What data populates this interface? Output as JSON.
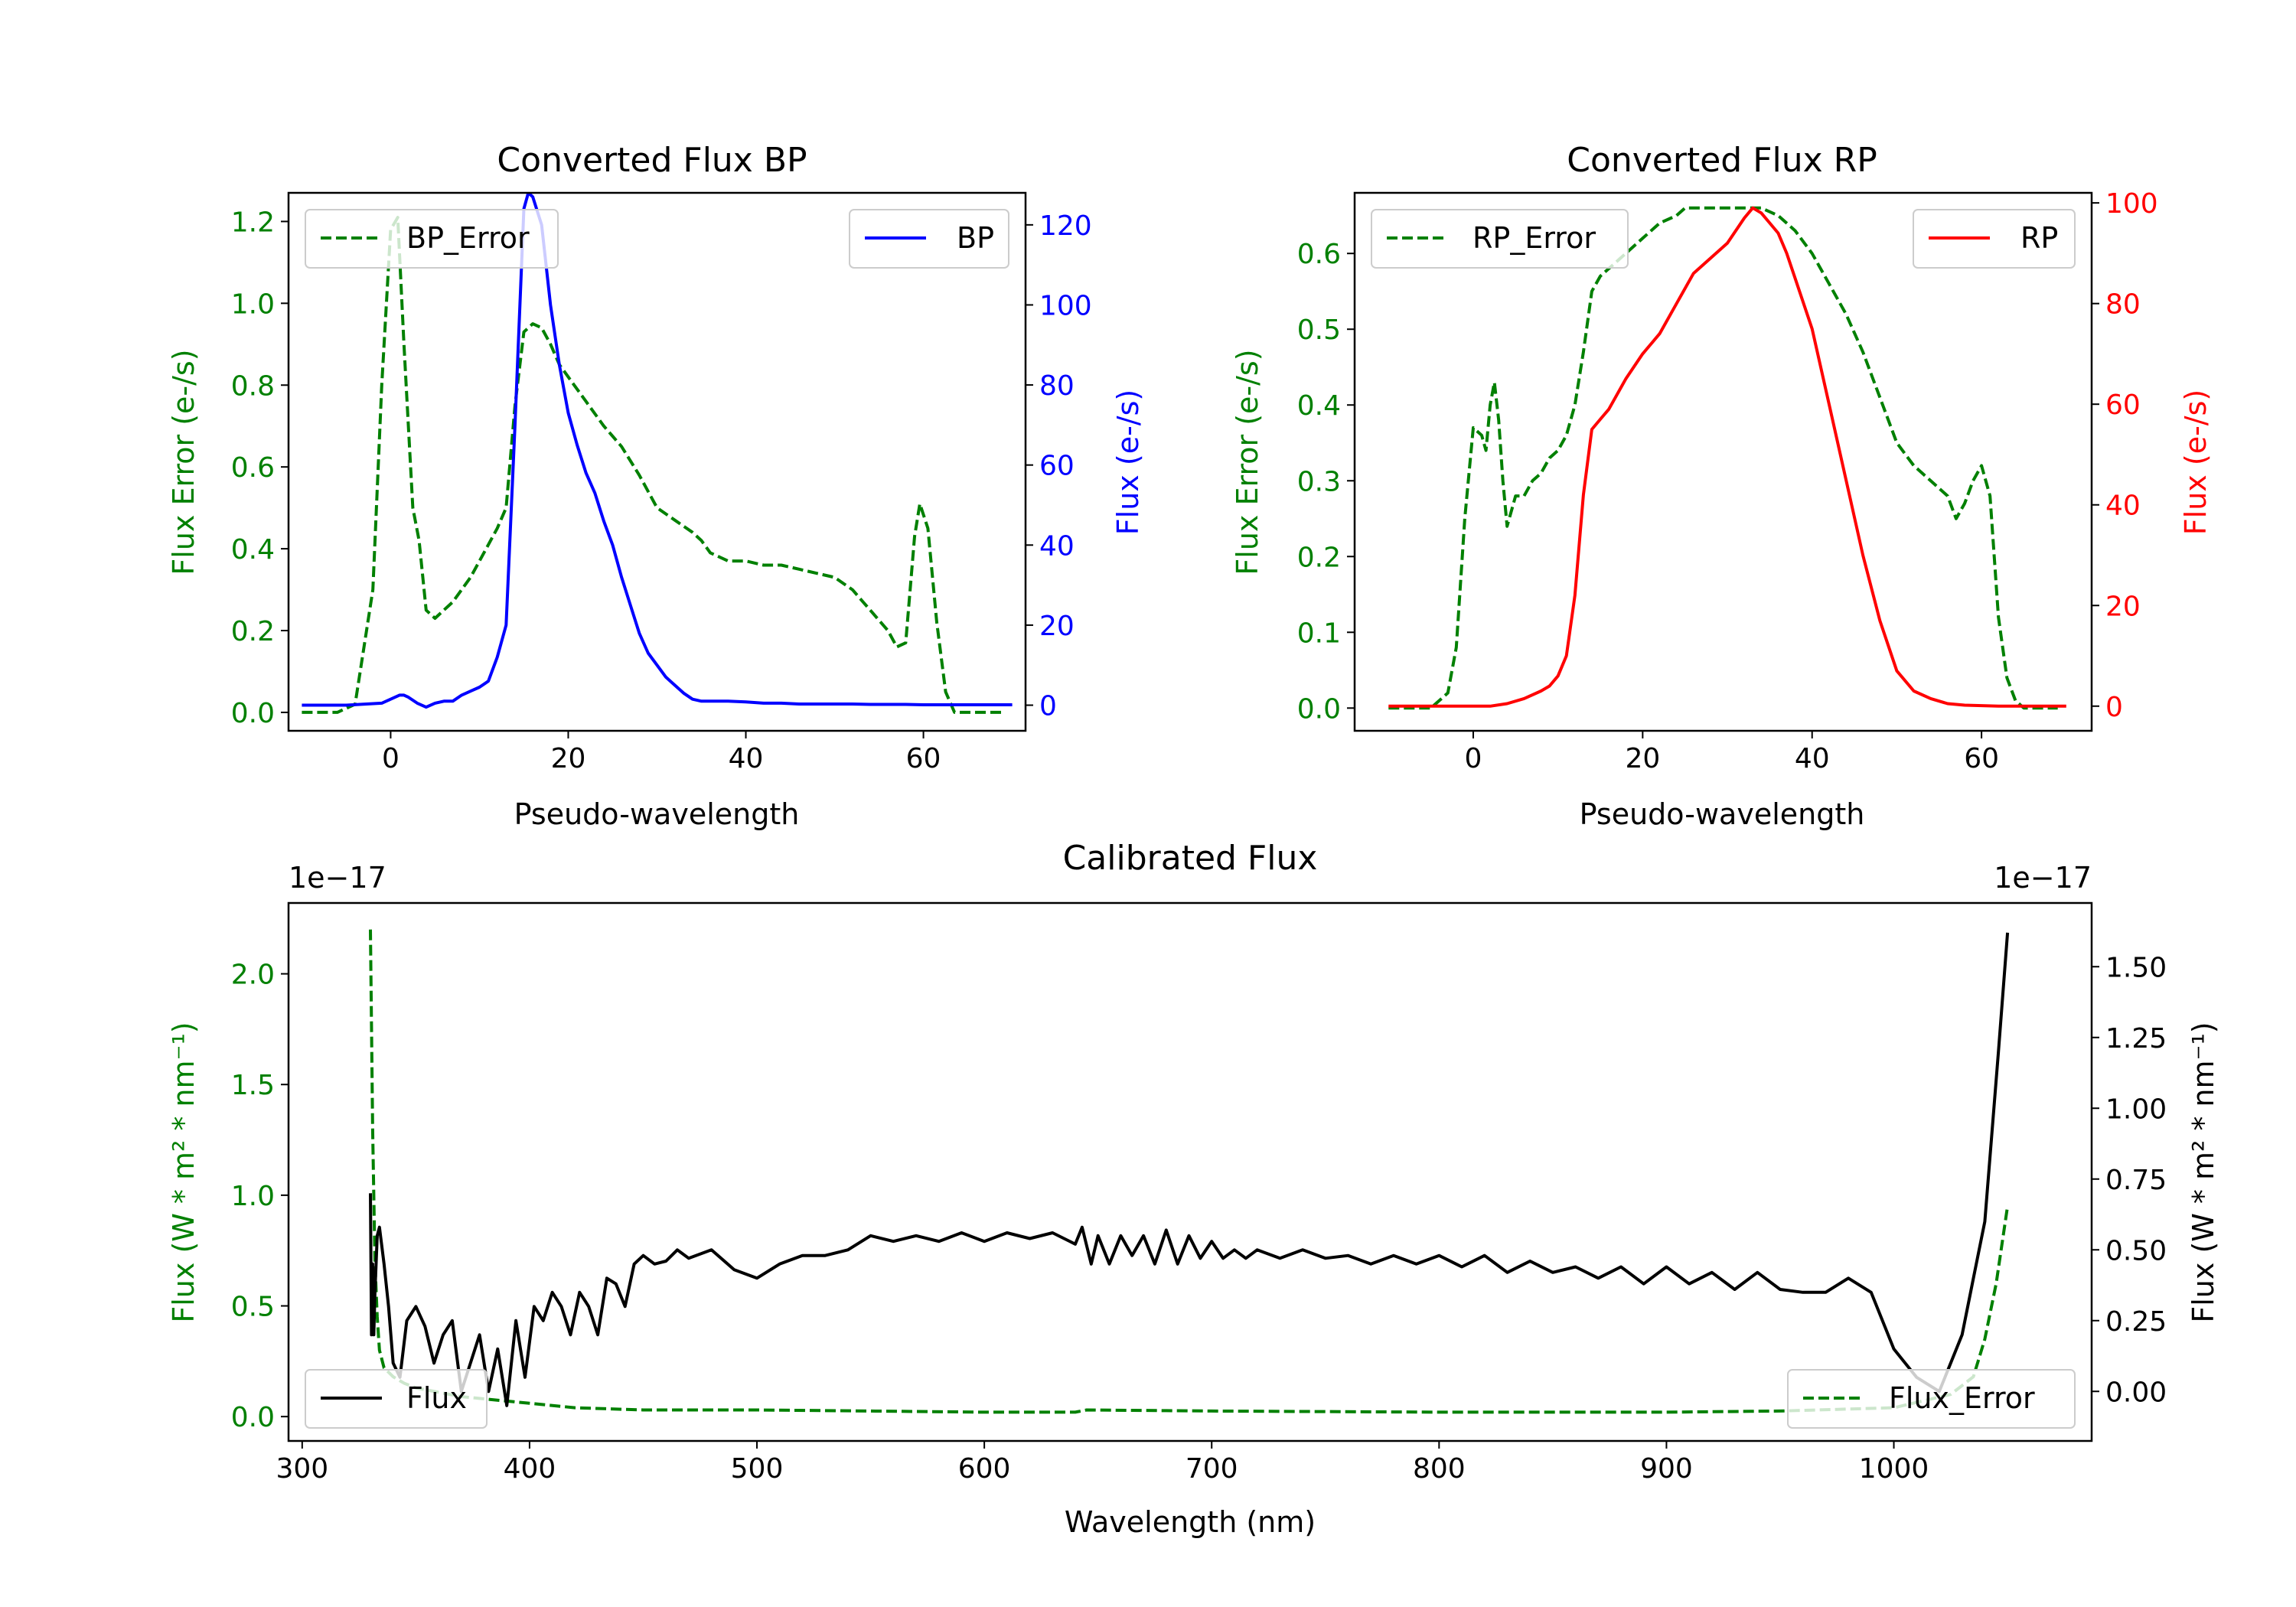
{
  "colors": {
    "green": "#008000",
    "blue": "#0000ff",
    "red": "#ff0000",
    "black": "#000000"
  },
  "chart_data": [
    {
      "id": "bp",
      "type": "line",
      "title": "Converted Flux BP",
      "xlabel": "Pseudo-wavelength",
      "ylabel_left": "Flux Error (e-/s)",
      "ylabel_right": "Flux (e-/s)",
      "xlim": [
        -11.5,
        71.5
      ],
      "xticks": [
        0,
        20,
        40,
        60
      ],
      "ylim_left": [
        -0.045,
        1.27
      ],
      "yticks_left": [
        0.0,
        0.2,
        0.4,
        0.6,
        0.8,
        1.0,
        1.2
      ],
      "ylim_right": [
        -6.4,
        128
      ],
      "yticks_right": [
        0,
        20,
        40,
        60,
        80,
        100,
        120
      ],
      "left_tick_color": "green",
      "right_tick_color": "blue",
      "legend_left": {
        "position": "upper-left",
        "label": "BP_Error"
      },
      "legend_right": {
        "position": "upper-right",
        "label": "BP"
      },
      "series": [
        {
          "name": "BP_Error",
          "axis": "left",
          "style": "dashed",
          "color": "green",
          "x": [
            -10,
            -6,
            -4,
            -2,
            -1,
            0,
            0.8,
            1.5,
            2.5,
            3.2,
            4,
            5,
            6,
            7,
            8,
            9,
            10,
            11,
            12,
            13,
            14,
            15,
            16,
            17,
            18,
            19,
            20,
            22,
            24,
            26,
            28,
            30,
            32,
            34,
            35,
            36,
            38,
            40,
            42,
            44,
            46,
            48,
            50,
            52,
            54,
            56,
            57,
            58,
            59,
            59.6,
            60.5,
            61.5,
            62.5,
            63.5,
            65,
            67,
            69
          ],
          "values": [
            0.0,
            0.0,
            0.02,
            0.3,
            0.8,
            1.18,
            1.21,
            0.9,
            0.5,
            0.42,
            0.25,
            0.23,
            0.25,
            0.27,
            0.3,
            0.33,
            0.37,
            0.41,
            0.45,
            0.5,
            0.75,
            0.93,
            0.95,
            0.94,
            0.9,
            0.85,
            0.82,
            0.76,
            0.7,
            0.65,
            0.58,
            0.5,
            0.47,
            0.44,
            0.42,
            0.39,
            0.37,
            0.37,
            0.36,
            0.36,
            0.35,
            0.34,
            0.33,
            0.3,
            0.25,
            0.2,
            0.16,
            0.17,
            0.43,
            0.51,
            0.45,
            0.22,
            0.05,
            0.0,
            0.0,
            0.0,
            0.0
          ]
        },
        {
          "name": "BP",
          "axis": "right",
          "style": "solid",
          "color": "blue",
          "x": [
            -10,
            -5,
            -1,
            0,
            1,
            1.5,
            2,
            3,
            4,
            5,
            6,
            7,
            8,
            9,
            10,
            11,
            12,
            13,
            14,
            15,
            15.5,
            16,
            17,
            18,
            19,
            20,
            21,
            22,
            23,
            24,
            25,
            26,
            27,
            28,
            29,
            30,
            31,
            32,
            33,
            34,
            35,
            36,
            38,
            40,
            42,
            44,
            46,
            48,
            50,
            52,
            54,
            56,
            58,
            60,
            62,
            64,
            66,
            68,
            70
          ],
          "values": [
            0,
            0,
            0.5,
            1.5,
            2.5,
            2.5,
            2,
            0.5,
            -0.5,
            0.5,
            1,
            1,
            2.5,
            3.5,
            4.5,
            6,
            12,
            20,
            70,
            124,
            128,
            127,
            120,
            100,
            85,
            73,
            65,
            58,
            53,
            46,
            40,
            32,
            25,
            18,
            13,
            10,
            7,
            5,
            3,
            1.5,
            1,
            1,
            1,
            0.8,
            0.5,
            0.5,
            0.3,
            0.3,
            0.3,
            0.3,
            0.2,
            0.2,
            0.2,
            0.1,
            0.1,
            0.1,
            0.1,
            0.1,
            0.1
          ]
        }
      ]
    },
    {
      "id": "rp",
      "type": "line",
      "title": "Converted Flux RP",
      "xlabel": "Pseudo-wavelength",
      "ylabel_left": "Flux Error (e-/s)",
      "ylabel_right": "Flux (e-/s)",
      "xlim": [
        -14,
        73
      ],
      "xticks": [
        0,
        20,
        40,
        60
      ],
      "ylim_left": [
        -0.03,
        0.68
      ],
      "yticks_left": [
        0.0,
        0.1,
        0.2,
        0.3,
        0.4,
        0.5,
        0.6
      ],
      "ylim_right": [
        -4.9,
        102
      ],
      "yticks_right": [
        0,
        20,
        40,
        60,
        80,
        100
      ],
      "left_tick_color": "green",
      "right_tick_color": "red",
      "legend_left": {
        "position": "upper-left",
        "label": "RP_Error"
      },
      "legend_right": {
        "position": "upper-right",
        "label": "RP"
      },
      "series": [
        {
          "name": "RP_Error",
          "axis": "left",
          "style": "dashed",
          "color": "green",
          "x": [
            -10,
            -5,
            -3,
            -2,
            -1,
            0,
            1,
            1.5,
            2,
            2.5,
            3,
            3.5,
            4,
            5,
            6,
            7,
            8,
            9,
            10,
            11,
            12,
            13,
            14,
            15,
            16,
            18,
            20,
            22,
            24,
            25,
            26,
            28,
            30,
            32,
            34,
            36,
            38,
            40,
            42,
            44,
            46,
            48,
            50,
            52,
            54,
            56,
            57,
            58,
            59,
            60,
            61,
            62,
            63,
            64,
            65,
            67,
            69
          ],
          "values": [
            0.0,
            0.0,
            0.02,
            0.08,
            0.25,
            0.37,
            0.36,
            0.34,
            0.4,
            0.43,
            0.38,
            0.3,
            0.24,
            0.28,
            0.28,
            0.3,
            0.31,
            0.33,
            0.34,
            0.36,
            0.4,
            0.47,
            0.55,
            0.57,
            0.58,
            0.6,
            0.62,
            0.64,
            0.65,
            0.66,
            0.66,
            0.66,
            0.66,
            0.66,
            0.66,
            0.65,
            0.63,
            0.6,
            0.56,
            0.52,
            0.47,
            0.41,
            0.35,
            0.32,
            0.3,
            0.28,
            0.25,
            0.27,
            0.3,
            0.32,
            0.28,
            0.12,
            0.04,
            0.01,
            0.0,
            0.0,
            0.0
          ]
        },
        {
          "name": "RP",
          "axis": "right",
          "style": "solid",
          "color": "red",
          "x": [
            -10,
            0,
            2,
            4,
            6,
            8,
            9,
            10,
            11,
            12,
            13,
            14,
            15,
            16,
            18,
            20,
            22,
            24,
            26,
            28,
            30,
            32,
            33,
            34,
            35,
            36,
            37,
            38,
            40,
            42,
            44,
            46,
            48,
            50,
            52,
            54,
            56,
            58,
            60,
            62,
            65,
            70
          ],
          "values": [
            0,
            0,
            0,
            0.5,
            1.5,
            3,
            4,
            6,
            10,
            22,
            42,
            55,
            57,
            59,
            65,
            70,
            74,
            80,
            86,
            89,
            92,
            97,
            99,
            98,
            96,
            94,
            90,
            85,
            75,
            60,
            45,
            30,
            17,
            7,
            3,
            1.5,
            0.5,
            0.2,
            0.1,
            0,
            0,
            0
          ]
        }
      ]
    },
    {
      "id": "cal",
      "type": "line",
      "title": "Calibrated Flux",
      "xlabel": "Wavelength (nm)",
      "ylabel_left": "Flux (W * m² * nm⁻¹)",
      "ylabel_right": "Flux (W * m² * nm⁻¹)",
      "offset_left": "1e−17",
      "offset_right": "1e−17",
      "xlim": [
        294,
        1087
      ],
      "xticks": [
        300,
        400,
        500,
        600,
        700,
        800,
        900,
        1000
      ],
      "ylim_left": [
        -0.11,
        2.32
      ],
      "yticks_left": [
        0.0,
        0.5,
        1.0,
        1.5,
        2.0
      ],
      "ylim_right": [
        -0.175,
        1.725
      ],
      "yticks_right": [
        0.0,
        0.25,
        0.5,
        0.75,
        1.0,
        1.25,
        1.5
      ],
      "right_tick_labels": [
        "0.00",
        "0.25",
        "0.50",
        "0.75",
        "1.00",
        "1.25",
        "1.50"
      ],
      "left_tick_color": "green",
      "right_tick_color": "black",
      "legend_left": {
        "position": "lower-left",
        "label": "Flux"
      },
      "legend_right": {
        "position": "lower-right",
        "label": "Flux_Error"
      },
      "series": [
        {
          "name": "Flux_Error",
          "axis": "left",
          "style": "dashed",
          "color": "green",
          "x": [
            330,
            331,
            332,
            333,
            334,
            336,
            340,
            345,
            350,
            360,
            370,
            380,
            390,
            400,
            420,
            450,
            500,
            550,
            600,
            640,
            645,
            700,
            800,
            900,
            950,
            1000,
            1025,
            1035,
            1040,
            1045,
            1050
          ],
          "values": [
            2.2,
            1.3,
            0.7,
            0.45,
            0.3,
            0.22,
            0.18,
            0.15,
            0.13,
            0.11,
            0.09,
            0.08,
            0.07,
            0.06,
            0.04,
            0.03,
            0.03,
            0.025,
            0.02,
            0.02,
            0.03,
            0.025,
            0.02,
            0.02,
            0.025,
            0.04,
            0.1,
            0.18,
            0.35,
            0.6,
            0.95
          ]
        },
        {
          "name": "Flux",
          "axis": "right",
          "style": "solid",
          "color": "black",
          "x": [
            330,
            330.5,
            331,
            331.5,
            332,
            333,
            334,
            336,
            338,
            340,
            343,
            346,
            350,
            354,
            358,
            362,
            366,
            370,
            374,
            378,
            382,
            386,
            390,
            394,
            398,
            402,
            406,
            410,
            414,
            418,
            422,
            426,
            430,
            434,
            438,
            442,
            446,
            450,
            455,
            460,
            465,
            470,
            480,
            490,
            500,
            510,
            520,
            530,
            540,
            550,
            560,
            570,
            580,
            590,
            600,
            610,
            620,
            630,
            640,
            643,
            647,
            650,
            655,
            660,
            665,
            670,
            675,
            680,
            685,
            690,
            695,
            700,
            705,
            710,
            715,
            720,
            730,
            740,
            750,
            760,
            770,
            780,
            790,
            800,
            810,
            820,
            830,
            840,
            850,
            860,
            870,
            880,
            890,
            900,
            910,
            920,
            930,
            940,
            950,
            960,
            970,
            980,
            990,
            1000,
            1010,
            1020,
            1030,
            1035,
            1040,
            1043,
            1046,
            1050
          ],
          "values": [
            0.7,
            0.2,
            0.45,
            0.2,
            0.35,
            0.55,
            0.58,
            0.45,
            0.3,
            0.1,
            0.05,
            0.25,
            0.3,
            0.23,
            0.1,
            0.2,
            0.25,
            0.0,
            0.1,
            0.2,
            0.0,
            0.15,
            -0.05,
            0.25,
            0.05,
            0.3,
            0.25,
            0.35,
            0.3,
            0.2,
            0.35,
            0.3,
            0.2,
            0.4,
            0.38,
            0.3,
            0.45,
            0.48,
            0.45,
            0.46,
            0.5,
            0.47,
            0.5,
            0.43,
            0.4,
            0.45,
            0.48,
            0.48,
            0.5,
            0.55,
            0.53,
            0.55,
            0.53,
            0.56,
            0.53,
            0.56,
            0.54,
            0.56,
            0.52,
            0.58,
            0.45,
            0.55,
            0.45,
            0.55,
            0.48,
            0.55,
            0.45,
            0.57,
            0.45,
            0.55,
            0.47,
            0.53,
            0.47,
            0.5,
            0.47,
            0.5,
            0.47,
            0.5,
            0.47,
            0.48,
            0.45,
            0.48,
            0.45,
            0.48,
            0.44,
            0.48,
            0.42,
            0.46,
            0.42,
            0.44,
            0.4,
            0.44,
            0.38,
            0.44,
            0.38,
            0.42,
            0.36,
            0.42,
            0.36,
            0.35,
            0.35,
            0.4,
            0.35,
            0.15,
            0.05,
            0.0,
            0.2,
            0.4,
            0.6,
            0.9,
            1.2,
            1.62
          ]
        }
      ]
    }
  ]
}
